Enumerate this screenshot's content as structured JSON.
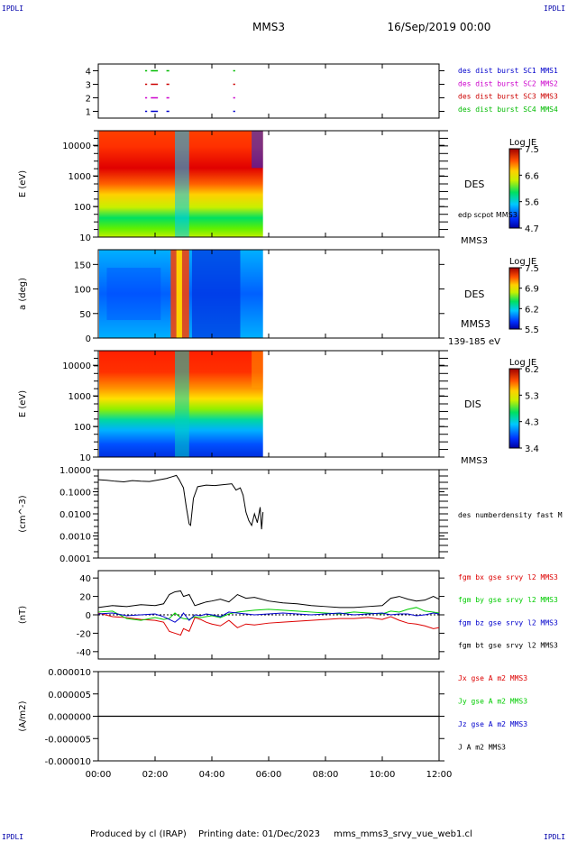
{
  "header": {
    "corner_tl": "IPDLI",
    "corner_tr": "IPDLI",
    "corner_bl": "IPDLI",
    "corner_br": "IPDLI",
    "spacecraft": "MMS3",
    "date": "16/Sep/2019 00:00"
  },
  "footer": {
    "produced_by": "Produced by cl (IRAP)",
    "printing_date": "Printing date: 01/Dec/2023",
    "filename": "mms_mms3_srvy_vue_web1.cl"
  },
  "colors": {
    "mms1": "#0000cc",
    "mms2": "#cc00cc",
    "mms3": "#cc0000",
    "mms4": "#00bb00",
    "bx": "#dd0000",
    "by": "#00cc00",
    "bz": "#0000cc",
    "bt": "#000000"
  },
  "chart_data": [
    {
      "id": "burst",
      "type": "scatter",
      "yticks": [
        "1",
        "2",
        "3",
        "4"
      ],
      "ylim": [
        0.5,
        4.5
      ],
      "legend": [
        {
          "name": "des dist burst SC1 MMS1",
          "color": "#0000cc"
        },
        {
          "name": "des dist burst SC2 MMS2",
          "color": "#cc00cc"
        },
        {
          "name": "des dist burst SC3 MMS3",
          "color": "#cc0000"
        },
        {
          "name": "des dist burst SC4 MMS4",
          "color": "#00bb00"
        }
      ],
      "intervals_hours": [
        [
          1.65,
          1.72
        ],
        [
          1.85,
          2.1
        ],
        [
          2.4,
          2.5
        ],
        [
          4.75,
          4.82
        ]
      ]
    },
    {
      "id": "des_energy",
      "type": "heatmap",
      "ylabel": "E (eV)",
      "scale": "log",
      "ylim": [
        10,
        30000
      ],
      "yticks": [
        "10",
        "100",
        "1000",
        "10000"
      ],
      "side_label": "DES",
      "side_sub": "edp scpot MMS3",
      "bottom_label": "MMS3",
      "colorbar": {
        "title": "Log JE",
        "ticks": [
          "7.5",
          "6.6",
          "5.6",
          "4.7"
        ]
      }
    },
    {
      "id": "des_pitch",
      "type": "heatmap",
      "ylabel": "a (deg)",
      "ylim": [
        0,
        180
      ],
      "yticks": [
        "0",
        "50",
        "100",
        "150"
      ],
      "side_label": "DES",
      "side_sub": "MMS3",
      "bottom_label": "139-185 eV",
      "colorbar": {
        "title": "Log JE",
        "ticks": [
          "7.5",
          "6.9",
          "6.2",
          "5.5"
        ]
      }
    },
    {
      "id": "dis_energy",
      "type": "heatmap",
      "ylabel": "E (eV)",
      "scale": "log",
      "ylim": [
        10,
        30000
      ],
      "yticks": [
        "10",
        "100",
        "1000",
        "10000"
      ],
      "side_label": "DIS",
      "bottom_label": "MMS3",
      "colorbar": {
        "title": "Log JE",
        "ticks": [
          "6.2",
          "5.3",
          "4.3",
          "3.4"
        ]
      }
    },
    {
      "id": "density",
      "type": "line",
      "ylabel": "(cm^-3)",
      "scale": "log",
      "ylim": [
        0.0001,
        1.0
      ],
      "yticks": [
        "0.0001",
        "0.0010",
        "0.0100",
        "0.1000",
        "1.0000"
      ],
      "legend": [
        {
          "name": "des numberdensity fast M",
          "color": "#000000"
        }
      ],
      "x": [
        0.0,
        0.3,
        0.6,
        0.9,
        1.2,
        1.5,
        1.8,
        2.1,
        2.4,
        2.6,
        2.75,
        2.85,
        3.0,
        3.1,
        3.2,
        3.25,
        3.35,
        3.5,
        3.8,
        4.1,
        4.4,
        4.7,
        4.85,
        5.0,
        5.1,
        5.2,
        5.3,
        5.4,
        5.5,
        5.6,
        5.7,
        5.75,
        5.8
      ],
      "values": [
        0.35,
        0.33,
        0.3,
        0.28,
        0.32,
        0.3,
        0.29,
        0.34,
        0.4,
        0.48,
        0.55,
        0.35,
        0.15,
        0.02,
        0.0035,
        0.003,
        0.05,
        0.17,
        0.2,
        0.19,
        0.21,
        0.23,
        0.12,
        0.15,
        0.07,
        0.012,
        0.005,
        0.003,
        0.01,
        0.004,
        0.02,
        0.002,
        0.012
      ]
    },
    {
      "id": "bfield",
      "type": "line",
      "ylabel": "(nT)",
      "ylim": [
        -48,
        48
      ],
      "yticks": [
        "-40",
        "-20",
        "0",
        "20",
        "40"
      ],
      "legend": [
        {
          "name": "fgm bx gse srvy l2 MMS3",
          "color": "#dd0000"
        },
        {
          "name": "fgm by gse srvy l2 MMS3",
          "color": "#00cc00"
        },
        {
          "name": "fgm bz gse srvy l2 MMS3",
          "color": "#0000cc"
        },
        {
          "name": "fgm bt gse srvy l2 MMS3",
          "color": "#000000"
        }
      ],
      "x": [
        0,
        0.5,
        1.0,
        1.5,
        2.0,
        2.3,
        2.5,
        2.7,
        2.9,
        3.0,
        3.2,
        3.4,
        3.6,
        3.8,
        4.0,
        4.3,
        4.6,
        4.9,
        5.2,
        5.5,
        6.0,
        6.5,
        7.0,
        7.5,
        8.0,
        8.5,
        9.0,
        9.5,
        10.0,
        10.3,
        10.6,
        10.9,
        11.2,
        11.5,
        11.8,
        12.0
      ],
      "series": [
        {
          "name": "fgm bx gse srvy l2 MMS3",
          "values": [
            2,
            -2,
            -3,
            -5,
            -6,
            -8,
            -18,
            -20,
            -22,
            -15,
            -18,
            -3,
            -5,
            -8,
            -10,
            -12,
            -6,
            -14,
            -10,
            -11,
            -9,
            -8,
            -7,
            -6,
            -5,
            -4,
            -4,
            -3,
            -5,
            -2,
            -6,
            -9,
            -10,
            -12,
            -15,
            -14
          ]
        },
        {
          "name": "fgm by gse srvy l2 MMS3",
          "values": [
            3,
            4,
            -4,
            -6,
            -3,
            -5,
            -4,
            2,
            -3,
            -4,
            -5,
            -2,
            -3,
            -2,
            -1,
            -3,
            1,
            3,
            4,
            5,
            6,
            5,
            4,
            3,
            2,
            1,
            3,
            2,
            1,
            4,
            3,
            6,
            8,
            4,
            3,
            2
          ]
        },
        {
          "name": "fgm bz gse srvy l2 MMS3",
          "values": [
            1,
            2,
            -1,
            0,
            1,
            -2,
            -5,
            -8,
            -3,
            2,
            -6,
            0,
            -1,
            1,
            0,
            -2,
            3,
            2,
            1,
            0,
            1,
            2,
            1,
            0,
            1,
            2,
            0,
            1,
            2,
            0,
            1,
            1,
            -1,
            0,
            2,
            1
          ]
        },
        {
          "name": "fgm bt gse srvy l2 MMS3",
          "values": [
            8,
            10,
            9,
            11,
            10,
            12,
            22,
            25,
            26,
            20,
            22,
            10,
            12,
            14,
            15,
            17,
            14,
            22,
            18,
            19,
            15,
            13,
            12,
            10,
            9,
            8,
            8,
            9,
            10,
            18,
            20,
            17,
            15,
            16,
            20,
            17
          ]
        }
      ]
    },
    {
      "id": "current",
      "type": "line",
      "ylabel": "(A/m2)",
      "ylim": [
        -1e-05,
        1e-05
      ],
      "yticks": [
        "-0.000010",
        "-0.000005",
        "0.000000",
        "0.000005",
        "0.000010"
      ],
      "legend": [
        {
          "name": "Jx gse A m2 MMS3",
          "color": "#dd0000"
        },
        {
          "name": "Jy gse A m2 MMS3",
          "color": "#00cc00"
        },
        {
          "name": "Jz gse A m2 MMS3",
          "color": "#0000cc"
        },
        {
          "name": "J A m2 MMS3",
          "color": "#000000"
        }
      ],
      "x": [
        0,
        12
      ],
      "values": [
        0,
        0
      ]
    }
  ],
  "xaxis": {
    "ticks": [
      "00:00",
      "02:00",
      "04:00",
      "06:00",
      "08:00",
      "10:00",
      "12:00"
    ],
    "range_hours": [
      0,
      12
    ],
    "data_end_hours": 5.8
  }
}
